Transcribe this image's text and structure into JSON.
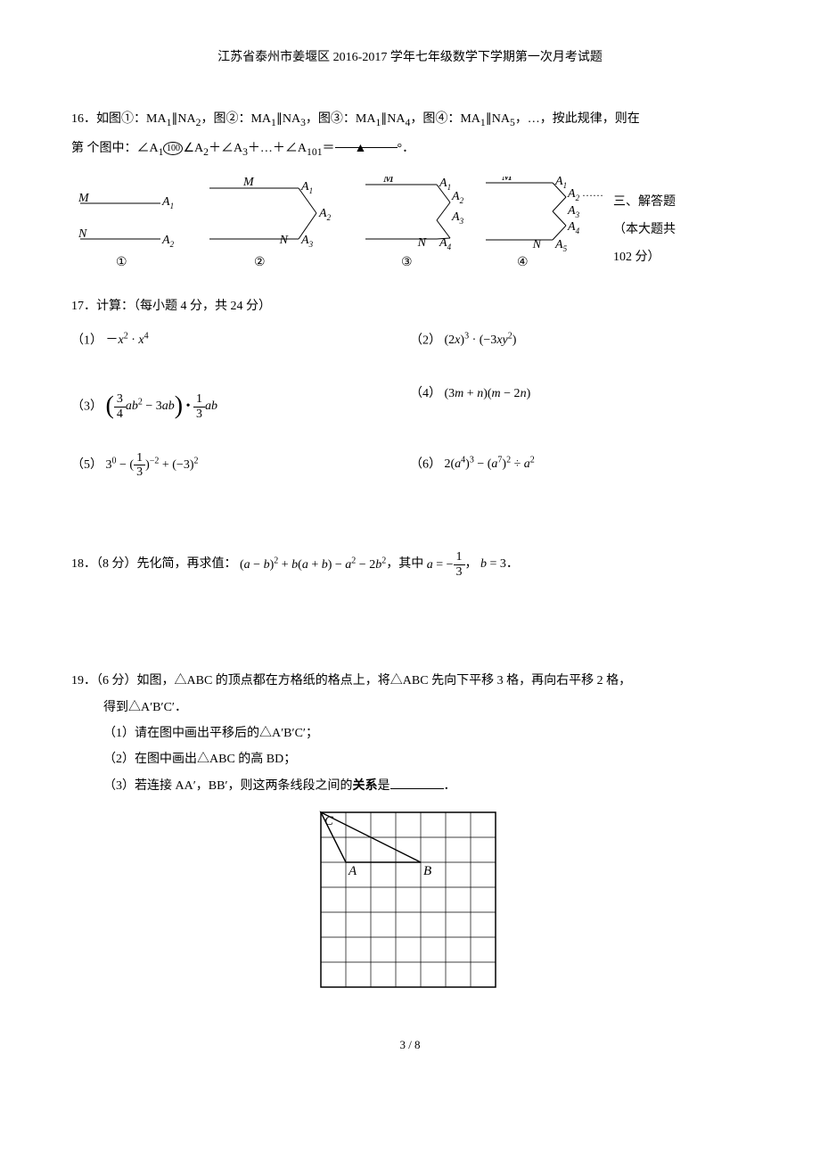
{
  "header": "江苏省泰州市姜堰区 2016-2017 学年七年级数学下学期第一次月考试题",
  "q16": {
    "line1_a": "16．如图①：MA",
    "line1_b": "∥NA",
    "line1_c": "，图②：MA",
    "line1_d": "∥NA",
    "line1_e": "，图③：MA",
    "line1_f": "∥NA",
    "line1_g": "，图④：MA",
    "line1_h": "∥NA",
    "line1_i": "，…，按此规律，则在",
    "line2_a": "第     个图中：∠A",
    "line2_b": "∠A",
    "line2_c": "＋∠A",
    "line2_d": "＋…＋∠A",
    "line2_e": "＝",
    "line2_f": "°．",
    "sub1": "1",
    "sub2": "2",
    "sub3": "3",
    "sub4": "4",
    "sub5": "5",
    "sub101": "101",
    "circle100": "100",
    "tri": "▲"
  },
  "sideText": {
    "l1": "三、解答题",
    "l2": "（本大题共",
    "l3": "102 分）"
  },
  "q17": {
    "title": "17．计算：（每小题 4 分，共 24 分）",
    "p1_label": "（1）",
    "p1_expr": "－x² · x⁴",
    "p2_label": "（2）",
    "p3_label": "（3）",
    "p4_label": "（4）",
    "p5_label": "（5）",
    "p6_label": "（6）"
  },
  "q18": {
    "prefix": "18．（8 分）先化简，再求值：",
    "mid": "，其中",
    "comma": "，",
    "end": "．"
  },
  "q19": {
    "line1": "19．（6 分）如图，△ABC 的顶点都在方格纸的格点上，将△ABC 先向下平移 3 格，再向右平移 2 格，",
    "line2": "得到△A′B′C′．",
    "p1": "（1）请在图中画出平移后的△A′B′C′；",
    "p2": "（2）在图中画出△ABC 的高 BD；",
    "p3a": "（3）若连接 AA′，BB′，则这两条线段之间的",
    "p3bold": "关系",
    "p3b": "是",
    "p3c": "．"
  },
  "grid": {
    "cols": 7,
    "rows": 7,
    "cell": 28,
    "C": {
      "col": 0,
      "row": 0,
      "label": "C"
    },
    "A": {
      "col": 1,
      "row": 2,
      "label": "A"
    },
    "B": {
      "col": 4,
      "row": 2,
      "label": "B"
    }
  },
  "footer": "3 / 8",
  "diagram": {
    "dots": "……",
    "c1": "①",
    "c2": "②",
    "c3": "③",
    "c4": "④",
    "M": "M",
    "N": "N",
    "A": "A",
    "s1": "1",
    "s2": "2",
    "s3": "3",
    "s4": "4",
    "s5": "5"
  }
}
